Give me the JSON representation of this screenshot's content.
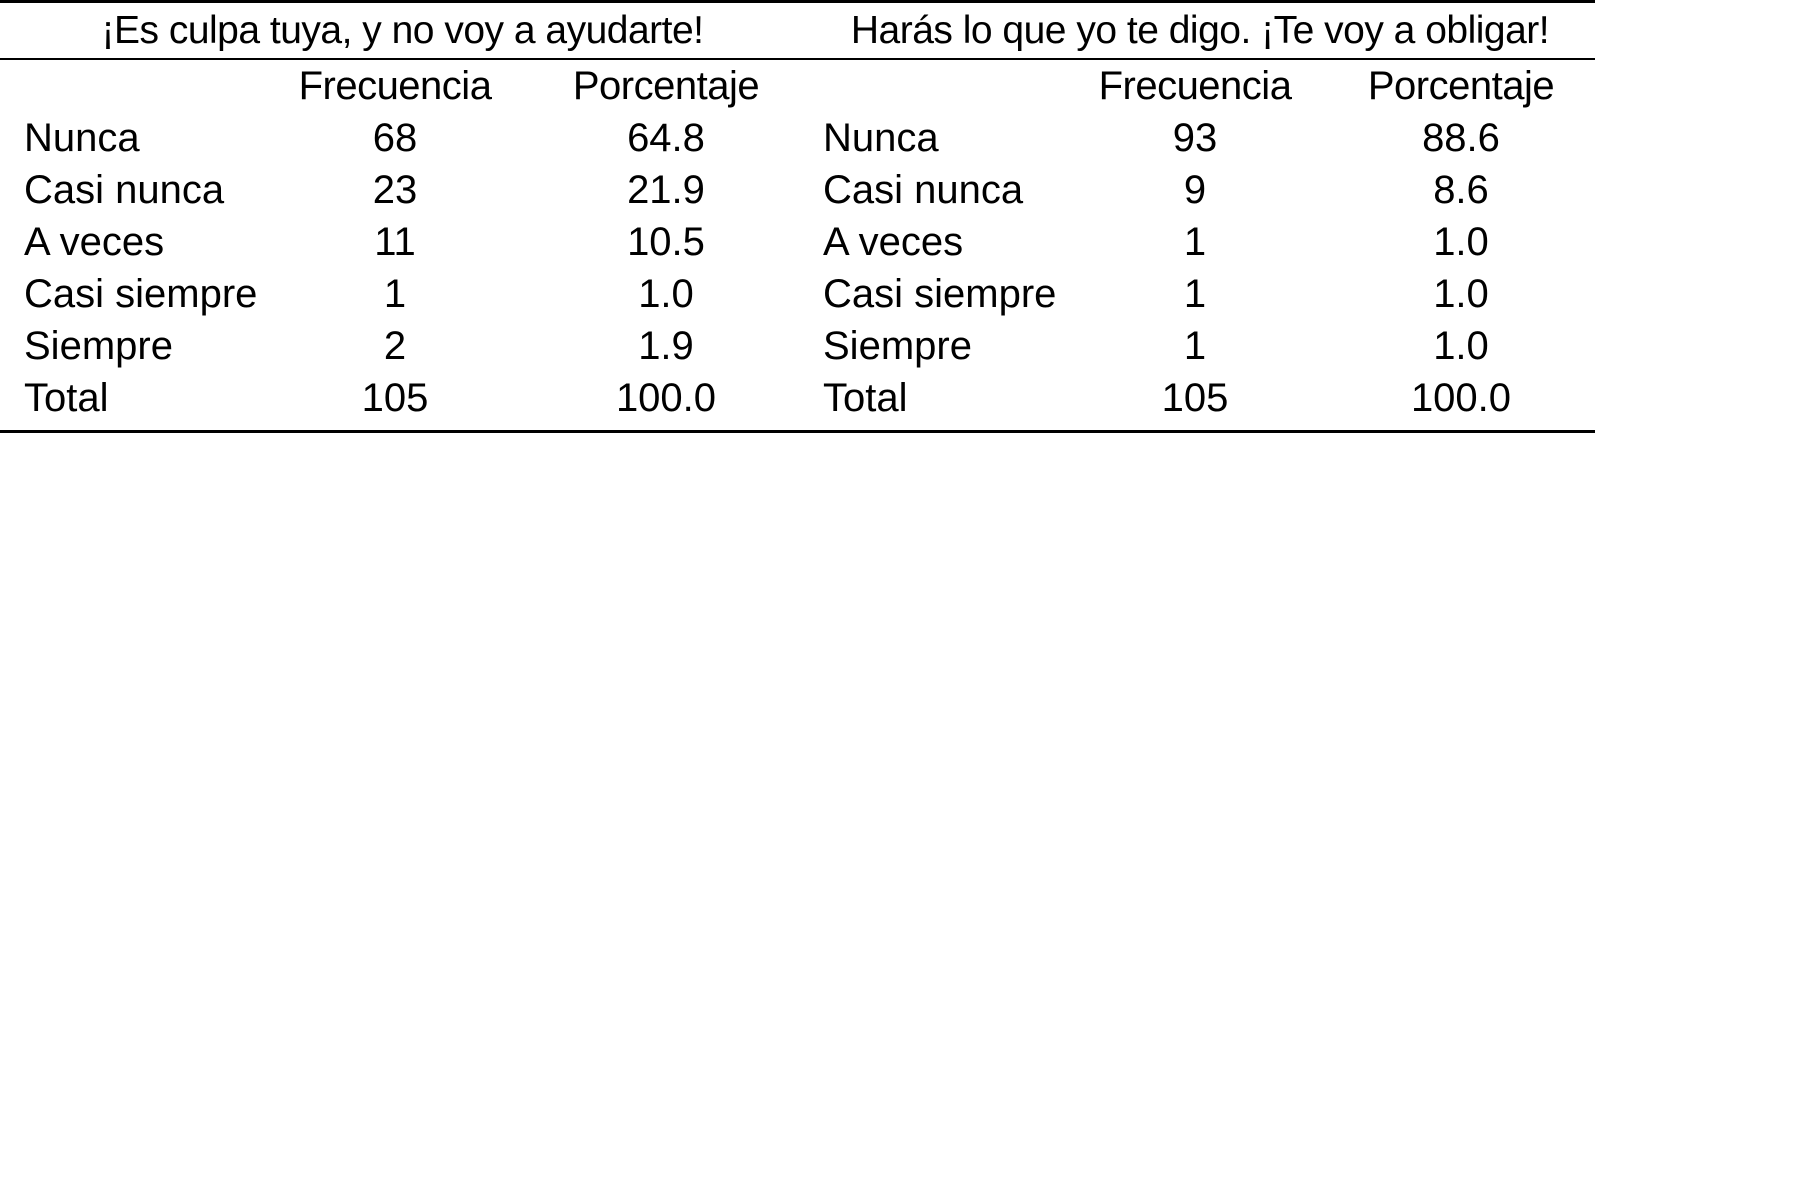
{
  "page": {
    "background": "#ffffff",
    "text_color": "#000000",
    "rule_color": "#000000"
  },
  "chart_data": {
    "type": "table",
    "tables": [
      {
        "title": "¡Es culpa tuya, y no voy a ayudarte!",
        "columns": [
          "Frecuencia",
          "Porcentaje"
        ],
        "rows": [
          {
            "label": "Nunca",
            "frecuencia": "68",
            "porcentaje": "64.8"
          },
          {
            "label": "Casi nunca",
            "frecuencia": "23",
            "porcentaje": "21.9"
          },
          {
            "label": "A veces",
            "frecuencia": "11",
            "porcentaje": "10.5"
          },
          {
            "label": "Casi siempre",
            "frecuencia": "1",
            "porcentaje": "1.0"
          },
          {
            "label": "Siempre",
            "frecuencia": "2",
            "porcentaje": "1.9"
          },
          {
            "label": "Total",
            "frecuencia": "105",
            "porcentaje": "100.0"
          }
        ]
      },
      {
        "title": "Harás lo que yo te digo. ¡Te voy a obligar!",
        "columns": [
          "Frecuencia",
          "Porcentaje"
        ],
        "rows": [
          {
            "label": "Nunca",
            "frecuencia": "93",
            "porcentaje": "88.6"
          },
          {
            "label": "Casi nunca",
            "frecuencia": "9",
            "porcentaje": "8.6"
          },
          {
            "label": "A veces",
            "frecuencia": "1",
            "porcentaje": "1.0"
          },
          {
            "label": "Casi siempre",
            "frecuencia": "1",
            "porcentaje": "1.0"
          },
          {
            "label": "Siempre",
            "frecuencia": "1",
            "porcentaje": "1.0"
          },
          {
            "label": "Total",
            "frecuencia": "105",
            "porcentaje": "100.0"
          }
        ]
      }
    ]
  }
}
